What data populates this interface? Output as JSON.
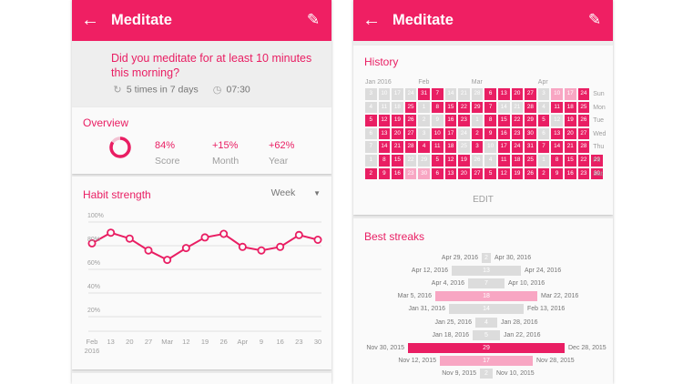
{
  "colors": {
    "accent": "#e91e63",
    "appbar": "#ef1f63",
    "grey": "#dcdcdc",
    "light_pink": "#f8a6c3"
  },
  "left": {
    "appbar": {
      "back_icon": "arrow-back-icon",
      "title": "Meditate",
      "edit_icon": "pencil-icon"
    },
    "question": "Did you meditate for at least 10 minutes this morning?",
    "frequency": "5 times in 7 days",
    "reminder": "07:30",
    "overview": {
      "title": "Overview",
      "score": {
        "value": "84%",
        "label": "Score",
        "fraction": 0.84
      },
      "month": {
        "value": "+15%",
        "label": "Month"
      },
      "year": {
        "value": "+62%",
        "label": "Year"
      }
    },
    "habit_strength": {
      "title": "Habit strength",
      "period": "Week",
      "y_labels": [
        "100%",
        "80%",
        "60%",
        "40%",
        "20%"
      ],
      "x_labels": [
        {
          "top": "Feb",
          "bottom": "2016"
        },
        {
          "top": "13"
        },
        {
          "top": "20"
        },
        {
          "top": "27"
        },
        {
          "top": "Mar"
        },
        {
          "top": "12"
        },
        {
          "top": "19"
        },
        {
          "top": "26"
        },
        {
          "top": "Apr"
        },
        {
          "top": "9"
        },
        {
          "top": "16"
        },
        {
          "top": "23"
        },
        {
          "top": "30"
        }
      ],
      "values": [
        82,
        91,
        86,
        76,
        68,
        78,
        87,
        90,
        79,
        76,
        79,
        89,
        85
      ]
    }
  },
  "right": {
    "appbar": {
      "back_icon": "arrow-back-icon",
      "title": "Meditate",
      "edit_icon": "pencil-icon"
    },
    "history": {
      "title": "History",
      "months": [
        {
          "label": "Jan 2016",
          "col": 0
        },
        {
          "label": "Feb",
          "col": 4
        },
        {
          "label": "Mar",
          "col": 8
        },
        {
          "label": "Apr",
          "col": 13
        }
      ],
      "days": [
        "Sun",
        "Mon",
        "Tue",
        "Wed",
        "Thu",
        "Fri",
        "Sat"
      ],
      "rows": [
        [
          "3",
          "10",
          "17",
          "24",
          "31",
          "7",
          "14",
          "21",
          "28",
          "6",
          "13",
          "20",
          "27",
          "3",
          "10",
          "17",
          "24"
        ],
        [
          "4",
          "11",
          "18",
          "25",
          "1",
          "8",
          "15",
          "22",
          "29",
          "7",
          "14",
          "21",
          "28",
          "4",
          "11",
          "18",
          "25"
        ],
        [
          "5",
          "12",
          "19",
          "26",
          "2",
          "9",
          "16",
          "23",
          "1",
          "8",
          "15",
          "22",
          "29",
          "5",
          "12",
          "19",
          "26"
        ],
        [
          "6",
          "13",
          "20",
          "27",
          "3",
          "10",
          "17",
          "24",
          "2",
          "9",
          "16",
          "23",
          "30",
          "6",
          "13",
          "20",
          "27"
        ],
        [
          "7",
          "14",
          "21",
          "28",
          "4",
          "11",
          "18",
          "25",
          "3",
          "10",
          "17",
          "24",
          "31",
          "7",
          "14",
          "21",
          "28"
        ],
        [
          "1",
          "8",
          "15",
          "22",
          "29",
          "5",
          "12",
          "19",
          "26",
          "4",
          "11",
          "18",
          "25",
          "1",
          "8",
          "15",
          "22",
          "29"
        ],
        [
          "2",
          "9",
          "16",
          "23",
          "30",
          "6",
          "13",
          "20",
          "27",
          "5",
          "12",
          "19",
          "26",
          "2",
          "9",
          "16",
          "23",
          "30"
        ]
      ],
      "status": [
        [
          0,
          0,
          0,
          0,
          2,
          2,
          0,
          0,
          0,
          2,
          2,
          2,
          2,
          0,
          1,
          1,
          2
        ],
        [
          0,
          0,
          0,
          2,
          0,
          2,
          2,
          2,
          2,
          2,
          0,
          0,
          2,
          0,
          2,
          2,
          2
        ],
        [
          2,
          2,
          2,
          2,
          0,
          0,
          2,
          2,
          0,
          2,
          2,
          2,
          2,
          2,
          0,
          2,
          2
        ],
        [
          0,
          2,
          2,
          2,
          0,
          2,
          2,
          0,
          2,
          2,
          2,
          2,
          2,
          0,
          2,
          2,
          2
        ],
        [
          0,
          2,
          2,
          2,
          2,
          2,
          2,
          0,
          2,
          0,
          2,
          2,
          2,
          2,
          2,
          2,
          2
        ],
        [
          0,
          2,
          2,
          0,
          0,
          2,
          2,
          2,
          0,
          0,
          2,
          2,
          2,
          0,
          2,
          2,
          2,
          2
        ],
        [
          2,
          2,
          2,
          1,
          1,
          2,
          2,
          2,
          2,
          2,
          2,
          2,
          2,
          2,
          2,
          2,
          2,
          2
        ]
      ],
      "edit_label": "EDIT"
    },
    "best_streaks": {
      "title": "Best streaks",
      "rows": [
        {
          "start": "Apr 29, 2016",
          "end": "Apr 30, 2016",
          "count": "2",
          "width": 10,
          "color": "grey"
        },
        {
          "start": "Apr 12, 2016",
          "end": "Apr 24, 2016",
          "count": "13",
          "width": 76,
          "color": "grey"
        },
        {
          "start": "Apr 4, 2016",
          "end": "Apr 10, 2016",
          "count": "7",
          "width": 40,
          "color": "grey"
        },
        {
          "start": "Mar 5, 2016",
          "end": "Mar 22, 2016",
          "count": "18",
          "width": 112,
          "color": "light_pink"
        },
        {
          "start": "Jan 31, 2016",
          "end": "Feb 13, 2016",
          "count": "14",
          "width": 82,
          "color": "grey"
        },
        {
          "start": "Jan 25, 2016",
          "end": "Jan 28, 2016",
          "count": "4",
          "width": 24,
          "color": "grey"
        },
        {
          "start": "Jan 18, 2016",
          "end": "Jan 22, 2016",
          "count": "5",
          "width": 30,
          "color": "grey"
        },
        {
          "start": "Nov 30, 2015",
          "end": "Dec 28, 2015",
          "count": "29",
          "width": 172,
          "color": "accent"
        },
        {
          "start": "Nov 12, 2015",
          "end": "Nov 28, 2015",
          "count": "17",
          "width": 102,
          "color": "light_pink"
        },
        {
          "start": "Nov 9, 2015",
          "end": "Nov 10, 2015",
          "count": "2",
          "width": 14,
          "color": "grey"
        }
      ]
    }
  }
}
